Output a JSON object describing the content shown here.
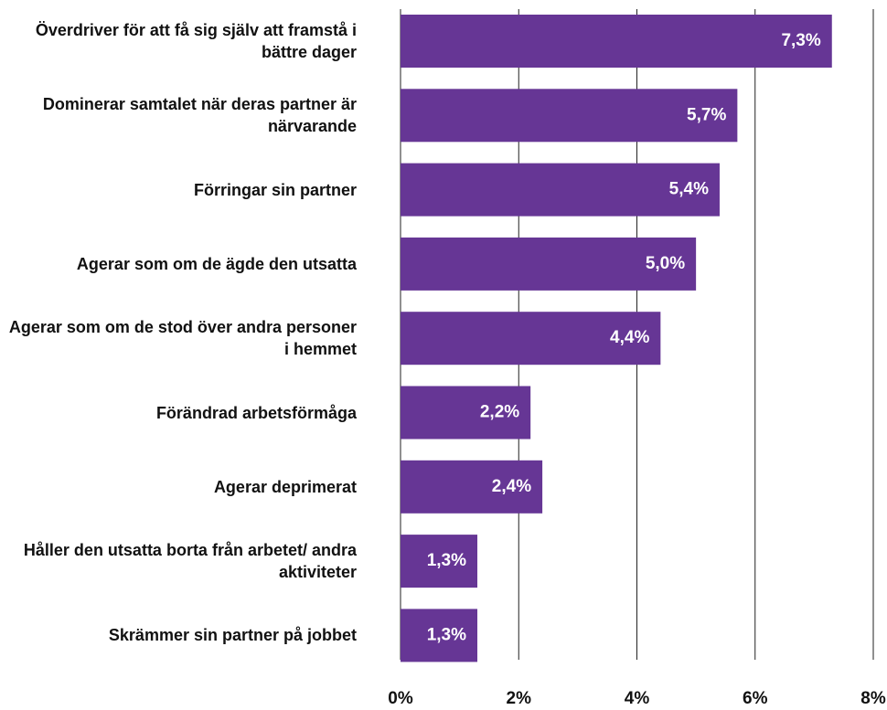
{
  "chart_data": {
    "type": "hbar",
    "categories": [
      "Överdriver för att få sig själv att framstå i bättre dager",
      "Dominerar samtalet när deras partner är närvarande",
      "Förringar sin partner",
      "Agerar som om de ägde den utsatta",
      "Agerar som om de stod över andra personer i hemmet",
      "Förändrad arbetsförmåga",
      "Agerar deprimerat",
      "Håller den utsatta borta från arbetet/ andra aktiviteter",
      "Skrämmer sin partner på jobbet"
    ],
    "values": [
      7.3,
      5.7,
      5.4,
      5.0,
      4.4,
      2.2,
      2.4,
      1.3,
      1.3
    ],
    "value_labels": [
      "7,3%",
      "5,7%",
      "5,4%",
      "5,0%",
      "4,4%",
      "2,2%",
      "2,4%",
      "1,3%",
      "1,3%"
    ],
    "color": "#663695",
    "xlim": [
      0,
      8
    ],
    "xticks": [
      {
        "value": 0,
        "label": "0%"
      },
      {
        "value": 2,
        "label": "2%"
      },
      {
        "value": 4,
        "label": "4%"
      },
      {
        "value": 6,
        "label": "6%"
      },
      {
        "value": 8,
        "label": "8%"
      }
    ],
    "grid": true
  }
}
